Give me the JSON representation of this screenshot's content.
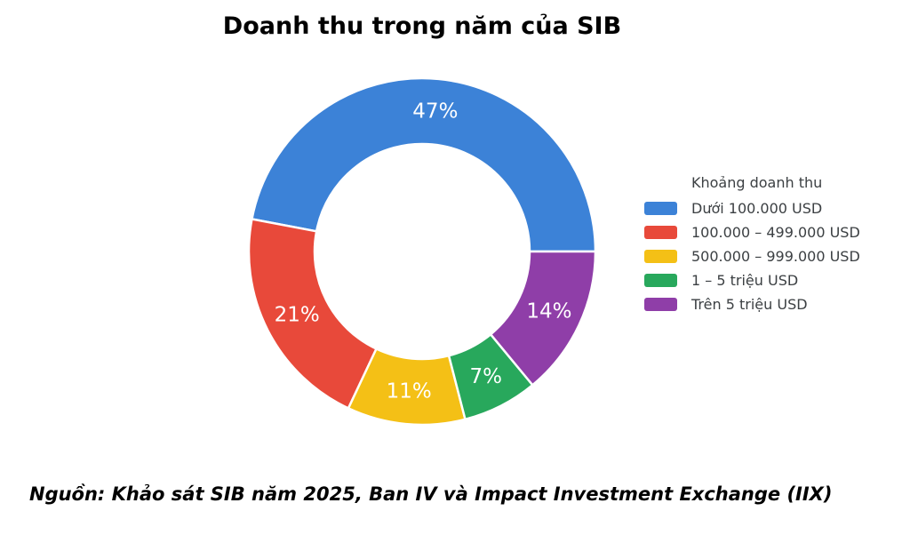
{
  "title": "Doanh thu trong năm của SIB",
  "source": "Nguồn: Khảo sát SIB năm 2025, Ban IV và Impact Investment Exchange (IIX)",
  "chart_data": {
    "type": "pie",
    "subtype": "donut",
    "title": "Doanh thu trong năm của SIB",
    "legend_title": "Khoảng doanh thu",
    "legend_position": "right",
    "start_angle_deg": 0,
    "direction": "counterclockwise",
    "categories": [
      "Dưới 100.000 USD",
      "100.000 – 499.000 USD",
      "500.000 – 999.000 USD",
      "1 – 5 triệu USD",
      "Trên 5 triệu USD"
    ],
    "values": [
      47,
      21,
      11,
      7,
      14
    ],
    "slice_labels": [
      "47%",
      "21%",
      "11%",
      "7%",
      "14%"
    ],
    "colors": [
      "#3C82D7",
      "#E8493A",
      "#F4C016",
      "#28A85C",
      "#8F3EA8"
    ],
    "slice_border_color": "#ffffff",
    "label_color": "#ffffff"
  }
}
